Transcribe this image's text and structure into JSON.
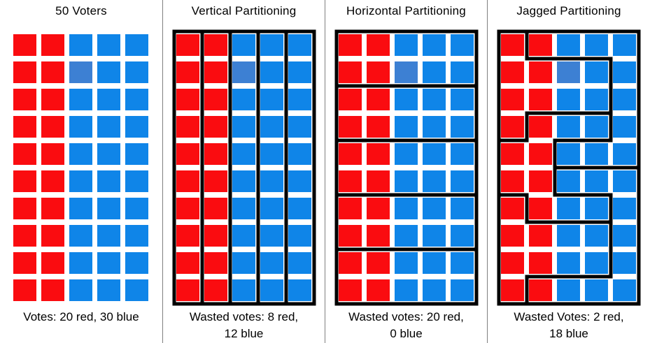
{
  "figure": {
    "background": "#ffffff",
    "colors": {
      "red": "#fa0c10",
      "blue": "#0f85e8",
      "special_blue": "#3d80d3",
      "district_border": "#000000",
      "separator": "#7f7f7f",
      "text": "#000000"
    },
    "grid": {
      "rows": 10,
      "cols": 5,
      "red_cols": [
        1,
        2
      ],
      "blue_cols": [
        3,
        4,
        5
      ],
      "special_cell": {
        "row": 2,
        "col": 3
      }
    },
    "panels": [
      {
        "id": "voters",
        "title": "50 Voters",
        "caption": [
          "Votes: 20 red, 30 blue"
        ],
        "partition": {
          "outline": false,
          "verticals": [],
          "horizontals": []
        }
      },
      {
        "id": "vertical",
        "title": "Vertical Partitioning",
        "caption": [
          "Wasted votes: 8 red,",
          "12 blue"
        ],
        "partition": {
          "outline": true,
          "verticals": [
            [
              1,
              0,
              10
            ],
            [
              2,
              0,
              10
            ],
            [
              3,
              0,
              10
            ],
            [
              4,
              0,
              10
            ]
          ],
          "horizontals": []
        }
      },
      {
        "id": "horizontal",
        "title": "Horizontal Partitioning",
        "caption": [
          "Wasted votes: 20 red,",
          "0 blue"
        ],
        "partition": {
          "outline": true,
          "verticals": [],
          "horizontals": [
            [
              2,
              0,
              5
            ],
            [
              4,
              0,
              5
            ],
            [
              6,
              0,
              5
            ],
            [
              8,
              0,
              5
            ]
          ]
        }
      },
      {
        "id": "jagged",
        "title": "Jagged Partitioning",
        "caption": [
          "Wasted Votes: 2 red,",
          "18 blue"
        ],
        "partition": {
          "outline": true,
          "verticals": [
            [
              1,
              0,
              1
            ],
            [
              4,
              1,
              4
            ],
            [
              1,
              3,
              4
            ],
            [
              2,
              4,
              6
            ],
            [
              1,
              6,
              7
            ],
            [
              4,
              6,
              9
            ],
            [
              1,
              9,
              10
            ]
          ],
          "horizontals": [
            [
              1,
              1,
              4
            ],
            [
              3,
              1,
              4
            ],
            [
              4,
              0,
              1
            ],
            [
              4,
              2,
              4
            ],
            [
              5,
              2,
              5
            ],
            [
              6,
              0,
              1
            ],
            [
              6,
              2,
              4
            ],
            [
              7,
              1,
              4
            ],
            [
              9,
              1,
              4
            ]
          ]
        }
      }
    ]
  }
}
